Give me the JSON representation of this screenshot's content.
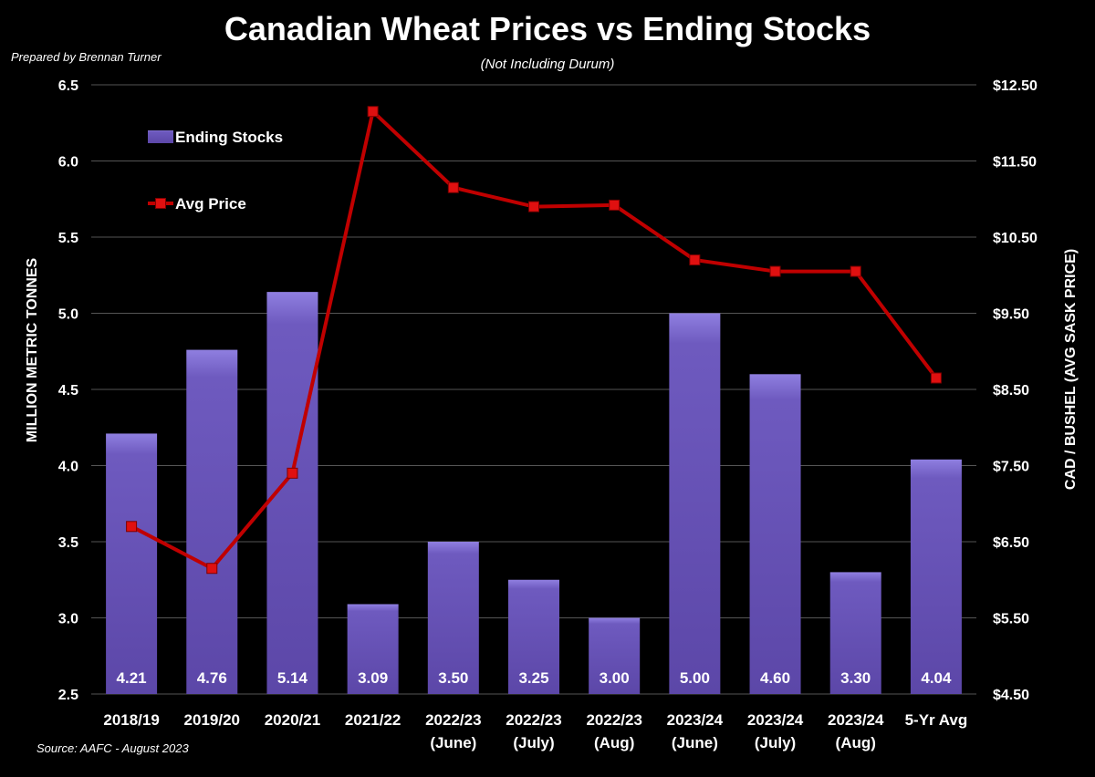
{
  "chart_data": {
    "type": "bar",
    "title": "Canadian Wheat Prices vs Ending Stocks",
    "subtitle": "(Not Including Durum)",
    "credit": "Prepared by Brennan Turner",
    "source": "Source: AAFC - August 2023",
    "categories": [
      [
        "2018/19"
      ],
      [
        "2019/20"
      ],
      [
        "2020/21"
      ],
      [
        "2021/22"
      ],
      [
        "2022/23",
        "(June)"
      ],
      [
        "2022/23",
        "(July)"
      ],
      [
        "2022/23",
        "(Aug)"
      ],
      [
        "2023/24",
        "(June)"
      ],
      [
        "2023/24",
        "(July)"
      ],
      [
        "2023/24",
        "(Aug)"
      ],
      [
        "5-Yr Avg"
      ]
    ],
    "series": [
      {
        "name": "Ending Stocks",
        "type": "bar",
        "axis": "left",
        "color": "#6a55b8",
        "values": [
          4.21,
          4.76,
          5.14,
          3.09,
          3.5,
          3.25,
          3.0,
          5.0,
          4.6,
          3.3,
          4.04
        ],
        "labels": [
          "4.21",
          "4.76",
          "5.14",
          "3.09",
          "3.50",
          "3.25",
          "3.00",
          "5.00",
          "4.60",
          "3.30",
          "4.04"
        ]
      },
      {
        "name": "Avg Price",
        "type": "line",
        "axis": "right",
        "color": "#c00000",
        "values": [
          6.7,
          6.15,
          7.4,
          12.15,
          11.15,
          10.9,
          10.92,
          10.2,
          10.05,
          10.05,
          8.65
        ]
      }
    ],
    "ylabel": "MILLION METRIC TONNES",
    "ylim": [
      2.5,
      6.5
    ],
    "yticks": [
      "2.5",
      "3.0",
      "3.5",
      "4.0",
      "4.5",
      "5.0",
      "5.5",
      "6.0",
      "6.5"
    ],
    "y2label": "CAD / BUSHEL (AVG SASK PRICE)",
    "y2lim": [
      4.5,
      12.5
    ],
    "y2ticks": [
      "$4.50",
      "$5.50",
      "$6.50",
      "$7.50",
      "$8.50",
      "$9.50",
      "$10.50",
      "$11.50",
      "$12.50"
    ],
    "grid": true,
    "legend": "top-left",
    "background": "#000000",
    "gridColor": "#555555"
  }
}
